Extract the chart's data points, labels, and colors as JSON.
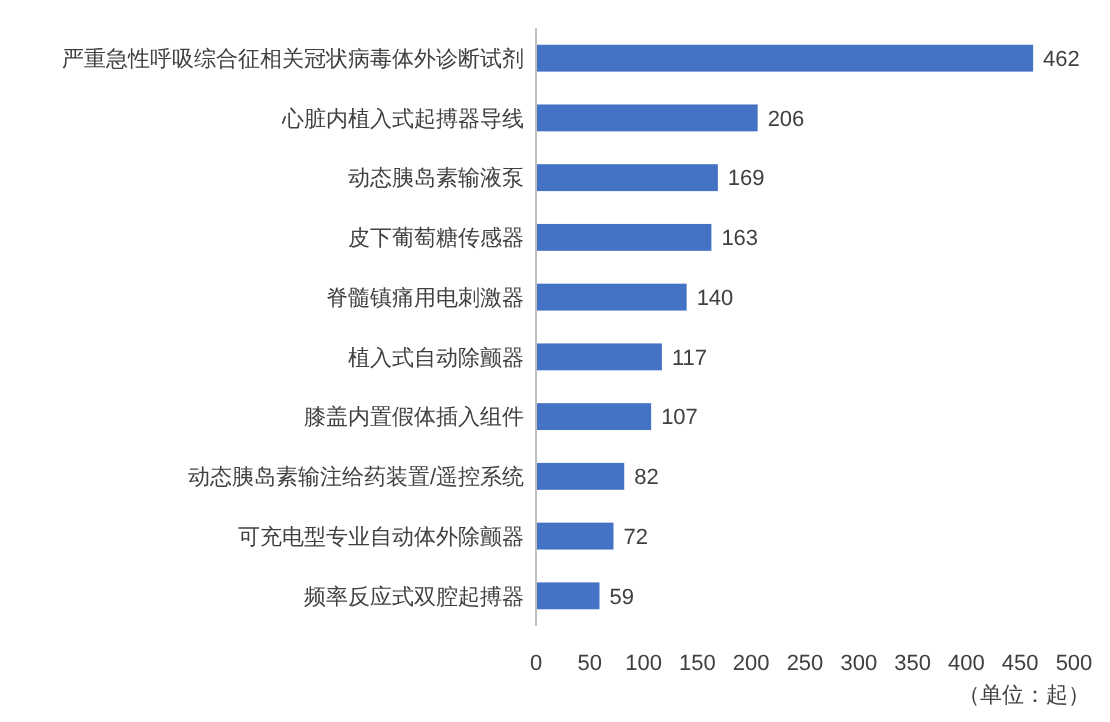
{
  "chart_data": {
    "type": "bar",
    "orientation": "horizontal",
    "categories": [
      "严重急性呼吸综合征相关冠状病毒体外诊断试剂",
      "心脏内植入式起搏器导线",
      "动态胰岛素输液泵",
      "皮下葡萄糖传感器",
      "脊髓镇痛用电刺激器",
      "植入式自动除颤器",
      "膝盖内置假体插入组件",
      "动态胰岛素输注给药装置/遥控系统",
      "可充电型专业自动体外除颤器",
      "频率反应式双腔起搏器"
    ],
    "values": [
      462,
      206,
      169,
      163,
      140,
      117,
      107,
      82,
      72,
      59
    ],
    "color": "#4472c4",
    "xlim": [
      0,
      500
    ],
    "xticks": [
      0,
      50,
      100,
      150,
      200,
      250,
      300,
      350,
      400,
      450,
      500
    ],
    "data_labels": true,
    "annotations": [
      "（单位：起）"
    ]
  }
}
